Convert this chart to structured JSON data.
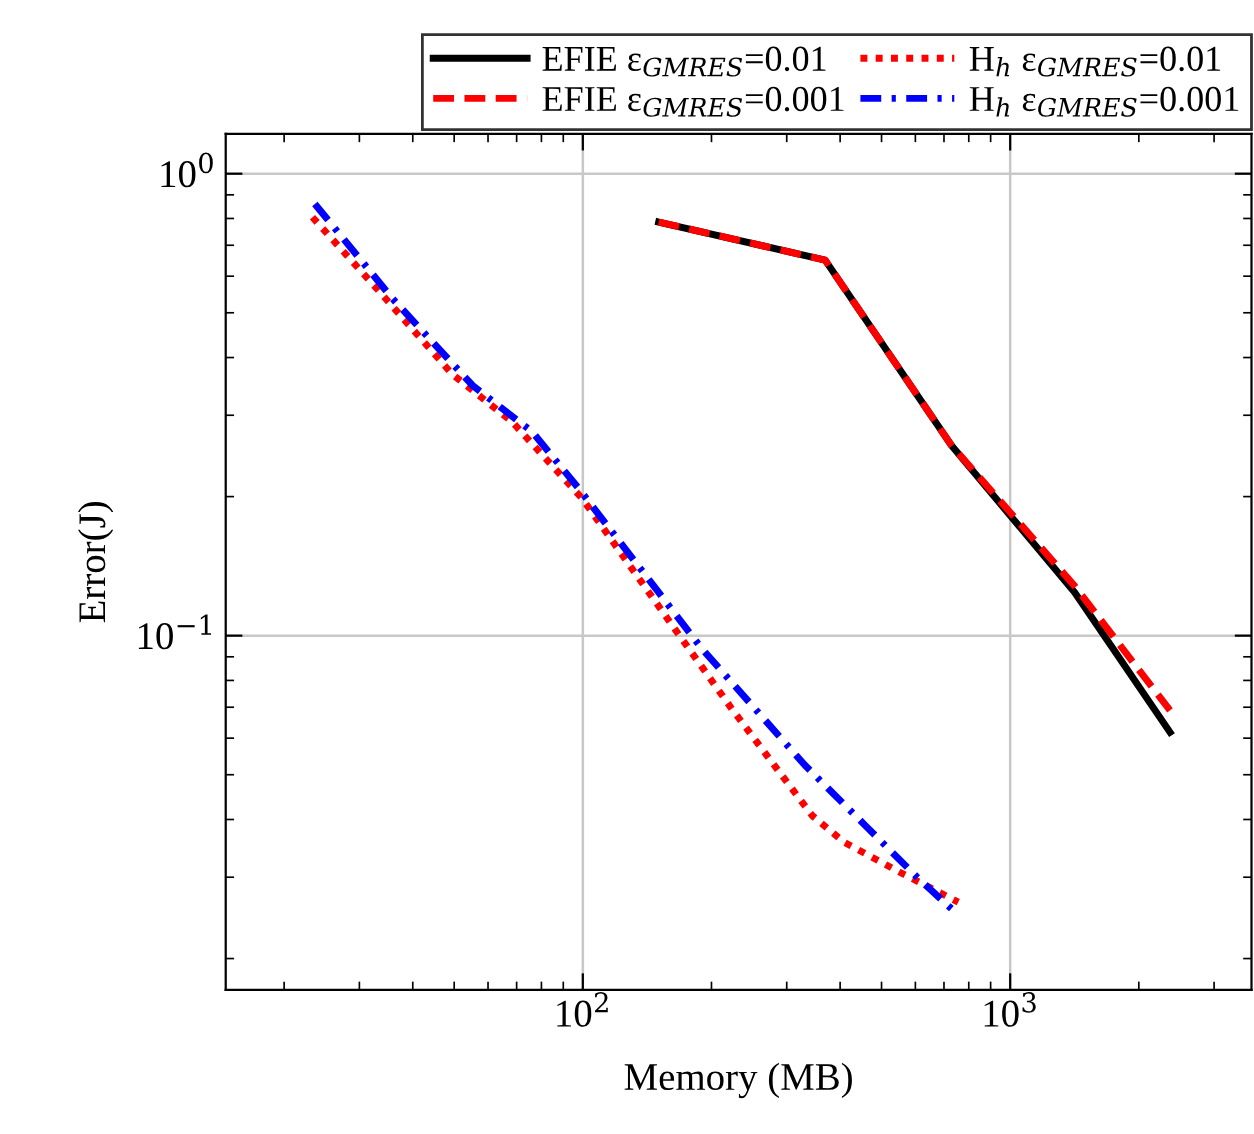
{
  "chart_data": {
    "type": "line",
    "xlabel": "Memory (MB)",
    "ylabel": "Error(J)",
    "log": "xy",
    "xlim": [
      14.6,
      3670
    ],
    "ylim": [
      0.0171,
      1.22
    ],
    "xticks": [
      {
        "value": 100,
        "label": "10$^{2}$"
      },
      {
        "value": 1000,
        "label": "10$^{3}$"
      }
    ],
    "yticks": [
      {
        "value": 0.1,
        "label": "10$^{−1}$"
      },
      {
        "value": 1,
        "label": "10$^{0}$"
      }
    ],
    "grid": true,
    "legend": "top right",
    "marker": "none",
    "series": [
      {
        "name": "EFIE ε$_{GMRES}$=0.01",
        "color": "#000000",
        "line_style": "solid",
        "x": [
          150.5,
          369,
          729,
          1416,
          2366
        ],
        "values": [
          0.786,
          0.65,
          0.258,
          0.124,
          0.0618
        ]
      },
      {
        "name": "EFIE ε$_{GMRES}$=0.001",
        "color": "#ff0000",
        "line_style": "dashed",
        "x": [
          150.5,
          369,
          729,
          1416,
          2366
        ],
        "values": [
          0.786,
          0.65,
          0.258,
          0.128,
          0.0689
        ]
      },
      {
        "name": "H$_{h}$ ε$_{GMRES}$=0.01",
        "color": "#ff0000",
        "line_style": "dotted",
        "x": [
          23.3,
          33.3,
          49.5,
          68.4,
          99.7,
          164,
          223,
          344,
          409,
          565,
          756
        ],
        "values": [
          0.805,
          0.558,
          0.368,
          0.29,
          0.198,
          0.1035,
          0.0695,
          0.0408,
          0.0357,
          0.0304,
          0.0265
        ]
      },
      {
        "name": "H$_{h}$ ε$_{GMRES}$=0.001",
        "color": "#0000ff",
        "line_style": "dashdot",
        "x": [
          23.6,
          35.9,
          55.2,
          76.2,
          97.9,
          190,
          331,
          457,
          610,
          730
        ],
        "values": [
          0.86,
          0.536,
          0.348,
          0.276,
          0.208,
          0.0937,
          0.0524,
          0.0389,
          0.0298,
          0.0256
        ]
      }
    ]
  }
}
